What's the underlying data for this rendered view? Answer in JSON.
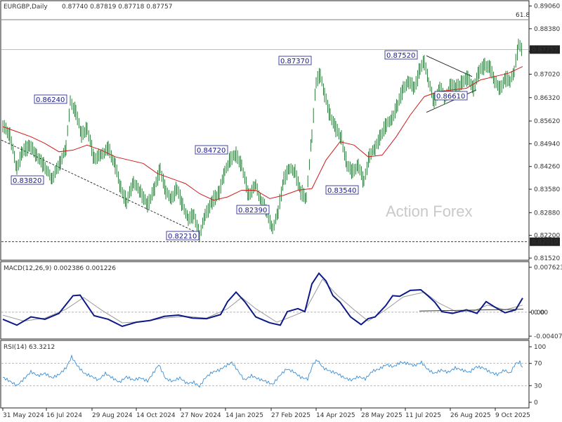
{
  "chart_data": [
    {
      "type": "candlestick",
      "title": "EURGBP,Daily",
      "ohlc_text": "0.87740 0.87819 0.87718 0.87757",
      "ylim": [
        0.8152,
        0.8906
      ],
      "y_ticks": [
        "0.89060",
        "0.88380",
        "0.87700",
        "0.87020",
        "0.86320",
        "0.85620",
        "0.84940",
        "0.84260",
        "0.83580",
        "0.82880",
        "0.82200",
        "0.81520"
      ],
      "x_ticks": [
        "31 May 2024",
        "16 Jul 2024",
        "29 Aug 2024",
        "14 Oct 2024",
        "27 Nov 2024",
        "14 Jan 2025",
        "27 Feb 2025",
        "14 Apr 2025",
        "28 May 2025",
        "11 Jul 2025",
        "26 Aug 2025",
        "9 Oct 2025"
      ],
      "current_price": "0.87757",
      "horizontal_level": "0.82010",
      "fib_label": "61.8",
      "fib_level": 0.8865,
      "watermark": "Action Forex",
      "price_labels": [
        "0.86240",
        "0.83820",
        "0.84720",
        "0.82210",
        "0.82390",
        "0.87370",
        "0.83540",
        "0.87520",
        "0.86610"
      ],
      "price_path": [
        [
          0,
          0.855
        ],
        [
          10,
          0.852
        ],
        [
          20,
          0.842
        ],
        [
          28,
          0.847
        ],
        [
          38,
          0.849
        ],
        [
          48,
          0.846
        ],
        [
          58,
          0.843
        ],
        [
          70,
          0.839
        ],
        [
          82,
          0.844
        ],
        [
          90,
          0.848
        ],
        [
          96,
          0.862
        ],
        [
          104,
          0.859
        ],
        [
          112,
          0.852
        ],
        [
          120,
          0.854
        ],
        [
          130,
          0.845
        ],
        [
          140,
          0.846
        ],
        [
          150,
          0.848
        ],
        [
          160,
          0.843
        ],
        [
          168,
          0.836
        ],
        [
          176,
          0.832
        ],
        [
          186,
          0.838
        ],
        [
          196,
          0.835
        ],
        [
          206,
          0.831
        ],
        [
          216,
          0.836
        ],
        [
          224,
          0.842
        ],
        [
          232,
          0.835
        ],
        [
          240,
          0.833
        ],
        [
          248,
          0.836
        ],
        [
          256,
          0.831
        ],
        [
          264,
          0.827
        ],
        [
          272,
          0.828
        ],
        [
          280,
          0.822
        ],
        [
          288,
          0.828
        ],
        [
          298,
          0.832
        ],
        [
          308,
          0.835
        ],
        [
          316,
          0.841
        ],
        [
          324,
          0.845
        ],
        [
          332,
          0.846
        ],
        [
          340,
          0.843
        ],
        [
          350,
          0.834
        ],
        [
          360,
          0.837
        ],
        [
          368,
          0.832
        ],
        [
          376,
          0.829
        ],
        [
          384,
          0.824
        ],
        [
          392,
          0.829
        ],
        [
          400,
          0.839
        ],
        [
          408,
          0.842
        ],
        [
          416,
          0.841
        ],
        [
          424,
          0.835
        ],
        [
          432,
          0.833
        ],
        [
          440,
          0.852
        ],
        [
          446,
          0.868
        ],
        [
          452,
          0.87
        ],
        [
          458,
          0.864
        ],
        [
          466,
          0.858
        ],
        [
          474,
          0.854
        ],
        [
          482,
          0.851
        ],
        [
          490,
          0.843
        ],
        [
          498,
          0.841
        ],
        [
          506,
          0.843
        ],
        [
          514,
          0.838
        ],
        [
          522,
          0.846
        ],
        [
          530,
          0.848
        ],
        [
          538,
          0.852
        ],
        [
          546,
          0.855
        ],
        [
          554,
          0.857
        ],
        [
          562,
          0.861
        ],
        [
          570,
          0.866
        ],
        [
          578,
          0.868
        ],
        [
          586,
          0.866
        ],
        [
          594,
          0.872
        ],
        [
          600,
          0.874
        ],
        [
          606,
          0.868
        ],
        [
          614,
          0.862
        ],
        [
          622,
          0.866
        ],
        [
          630,
          0.863
        ],
        [
          638,
          0.867
        ],
        [
          646,
          0.866
        ],
        [
          654,
          0.868
        ],
        [
          662,
          0.869
        ],
        [
          670,
          0.866
        ],
        [
          678,
          0.871
        ],
        [
          686,
          0.873
        ],
        [
          694,
          0.872
        ],
        [
          700,
          0.868
        ],
        [
          708,
          0.866
        ],
        [
          716,
          0.869
        ],
        [
          722,
          0.868
        ],
        [
          728,
          0.871
        ],
        [
          734,
          0.879
        ],
        [
          740,
          0.8776
        ]
      ],
      "ma_path": [
        [
          0,
          0.8545
        ],
        [
          20,
          0.853
        ],
        [
          40,
          0.8515
        ],
        [
          60,
          0.8495
        ],
        [
          80,
          0.847
        ],
        [
          100,
          0.8475
        ],
        [
          120,
          0.849
        ],
        [
          140,
          0.8475
        ],
        [
          160,
          0.8455
        ],
        [
          180,
          0.8445
        ],
        [
          200,
          0.8435
        ],
        [
          220,
          0.8405
        ],
        [
          240,
          0.839
        ],
        [
          260,
          0.8375
        ],
        [
          280,
          0.8345
        ],
        [
          300,
          0.8325
        ],
        [
          320,
          0.8335
        ],
        [
          340,
          0.8355
        ],
        [
          360,
          0.8355
        ],
        [
          380,
          0.833
        ],
        [
          400,
          0.834
        ],
        [
          420,
          0.8355
        ],
        [
          440,
          0.836
        ],
        [
          460,
          0.8445
        ],
        [
          480,
          0.85
        ],
        [
          500,
          0.849
        ],
        [
          520,
          0.8455
        ],
        [
          540,
          0.846
        ],
        [
          560,
          0.8515
        ],
        [
          580,
          0.858
        ],
        [
          600,
          0.8635
        ],
        [
          620,
          0.865
        ],
        [
          640,
          0.8655
        ],
        [
          660,
          0.866
        ],
        [
          680,
          0.8685
        ],
        [
          700,
          0.8695
        ],
        [
          720,
          0.8705
        ],
        [
          740,
          0.8725
        ]
      ]
    },
    {
      "type": "line",
      "title": "MACD(12,26,9) 0.002386 0.001226",
      "ylim": [
        -0.004073,
        0.007623
      ],
      "y_ticks": [
        "0.007623",
        "0.00",
        "-0.004073"
      ],
      "right_marker": "0.00",
      "macd_path": [
        [
          0,
          -0.0012
        ],
        [
          20,
          -0.0022
        ],
        [
          40,
          -0.0008
        ],
        [
          60,
          -0.0012
        ],
        [
          80,
          -0.0002
        ],
        [
          100,
          0.0028
        ],
        [
          110,
          0.0029
        ],
        [
          130,
          -0.0006
        ],
        [
          150,
          -0.0012
        ],
        [
          170,
          -0.0024
        ],
        [
          190,
          -0.0017
        ],
        [
          210,
          -0.0014
        ],
        [
          230,
          -0.0007
        ],
        [
          250,
          -0.0005
        ],
        [
          270,
          -0.001
        ],
        [
          290,
          -0.0011
        ],
        [
          310,
          -0.0004
        ],
        [
          320,
          0.0018
        ],
        [
          332,
          0.0034
        ],
        [
          345,
          0.0017
        ],
        [
          360,
          -0.0008
        ],
        [
          380,
          -0.0018
        ],
        [
          395,
          -0.0022
        ],
        [
          405,
          0.0001
        ],
        [
          420,
          0.0006
        ],
        [
          430,
          0.0001
        ],
        [
          440,
          0.0048
        ],
        [
          450,
          0.0066
        ],
        [
          460,
          0.0053
        ],
        [
          470,
          0.0028
        ],
        [
          480,
          0.0017
        ],
        [
          495,
          -0.0008
        ],
        [
          510,
          -0.0021
        ],
        [
          520,
          -0.0011
        ],
        [
          530,
          -0.0008
        ],
        [
          545,
          0.0011
        ],
        [
          555,
          0.0028
        ],
        [
          565,
          0.0027
        ],
        [
          580,
          0.0037
        ],
        [
          595,
          0.0038
        ],
        [
          605,
          0.0028
        ],
        [
          615,
          0.0017
        ],
        [
          625,
          0.0001
        ],
        [
          640,
          -0.0002
        ],
        [
          660,
          0.0004
        ],
        [
          675,
          -0.0002
        ],
        [
          688,
          0.0018
        ],
        [
          700,
          0.0009
        ],
        [
          715,
          -0.0001
        ],
        [
          730,
          0.0004
        ],
        [
          740,
          0.0024
        ]
      ],
      "signal_path": [
        [
          0,
          -0.0005
        ],
        [
          30,
          -0.0015
        ],
        [
          60,
          -0.001
        ],
        [
          90,
          0.0005
        ],
        [
          115,
          0.0025
        ],
        [
          140,
          0.0004
        ],
        [
          170,
          -0.0018
        ],
        [
          200,
          -0.0016
        ],
        [
          230,
          -0.001
        ],
        [
          260,
          -0.0007
        ],
        [
          290,
          -0.001
        ],
        [
          320,
          0.0006
        ],
        [
          340,
          0.0025
        ],
        [
          360,
          0.0006
        ],
        [
          390,
          -0.0017
        ],
        [
          410,
          -0.0008
        ],
        [
          430,
          0.0002
        ],
        [
          455,
          0.0056
        ],
        [
          475,
          0.003
        ],
        [
          500,
          0.0004
        ],
        [
          520,
          -0.0015
        ],
        [
          545,
          0.0004
        ],
        [
          570,
          0.0026
        ],
        [
          600,
          0.0034
        ],
        [
          620,
          0.0016
        ],
        [
          645,
          0.0001
        ],
        [
          670,
          0.0002
        ],
        [
          690,
          0.0012
        ],
        [
          715,
          0.0004
        ],
        [
          740,
          0.0012
        ]
      ],
      "trendline": [
        [
          597,
          0.0002
        ],
        [
          745,
          0.0005
        ]
      ]
    },
    {
      "type": "line",
      "title": "RSI(14) 63.3212",
      "ylim": [
        0,
        100
      ],
      "y_ticks": [
        "100",
        "70",
        "30",
        "0"
      ],
      "levels": [
        70,
        30
      ],
      "rsi_path": [
        [
          0,
          45
        ],
        [
          10,
          38
        ],
        [
          20,
          30
        ],
        [
          30,
          42
        ],
        [
          40,
          55
        ],
        [
          50,
          48
        ],
        [
          60,
          52
        ],
        [
          70,
          44
        ],
        [
          80,
          50
        ],
        [
          90,
          62
        ],
        [
          98,
          82
        ],
        [
          106,
          66
        ],
        [
          116,
          52
        ],
        [
          126,
          47
        ],
        [
          136,
          40
        ],
        [
          146,
          52
        ],
        [
          156,
          44
        ],
        [
          166,
          36
        ],
        [
          176,
          46
        ],
        [
          186,
          40
        ],
        [
          196,
          44
        ],
        [
          206,
          38
        ],
        [
          216,
          56
        ],
        [
          222,
          68
        ],
        [
          232,
          42
        ],
        [
          242,
          38
        ],
        [
          252,
          44
        ],
        [
          262,
          34
        ],
        [
          272,
          36
        ],
        [
          280,
          28
        ],
        [
          288,
          44
        ],
        [
          298,
          54
        ],
        [
          308,
          58
        ],
        [
          318,
          66
        ],
        [
          326,
          72
        ],
        [
          334,
          58
        ],
        [
          344,
          40
        ],
        [
          354,
          48
        ],
        [
          364,
          42
        ],
        [
          374,
          38
        ],
        [
          384,
          32
        ],
        [
          394,
          48
        ],
        [
          404,
          60
        ],
        [
          414,
          55
        ],
        [
          424,
          45
        ],
        [
          434,
          42
        ],
        [
          442,
          70
        ],
        [
          448,
          76
        ],
        [
          456,
          62
        ],
        [
          466,
          56
        ],
        [
          476,
          52
        ],
        [
          486,
          44
        ],
        [
          496,
          40
        ],
        [
          506,
          46
        ],
        [
          516,
          42
        ],
        [
          526,
          56
        ],
        [
          536,
          60
        ],
        [
          546,
          68
        ],
        [
          556,
          64
        ],
        [
          566,
          72
        ],
        [
          576,
          70
        ],
        [
          586,
          66
        ],
        [
          596,
          72
        ],
        [
          604,
          60
        ],
        [
          614,
          52
        ],
        [
          624,
          58
        ],
        [
          634,
          54
        ],
        [
          644,
          62
        ],
        [
          654,
          58
        ],
        [
          664,
          54
        ],
        [
          674,
          64
        ],
        [
          684,
          62
        ],
        [
          694,
          54
        ],
        [
          704,
          50
        ],
        [
          714,
          58
        ],
        [
          722,
          52
        ],
        [
          730,
          70
        ],
        [
          736,
          72
        ],
        [
          740,
          63
        ]
      ]
    }
  ]
}
